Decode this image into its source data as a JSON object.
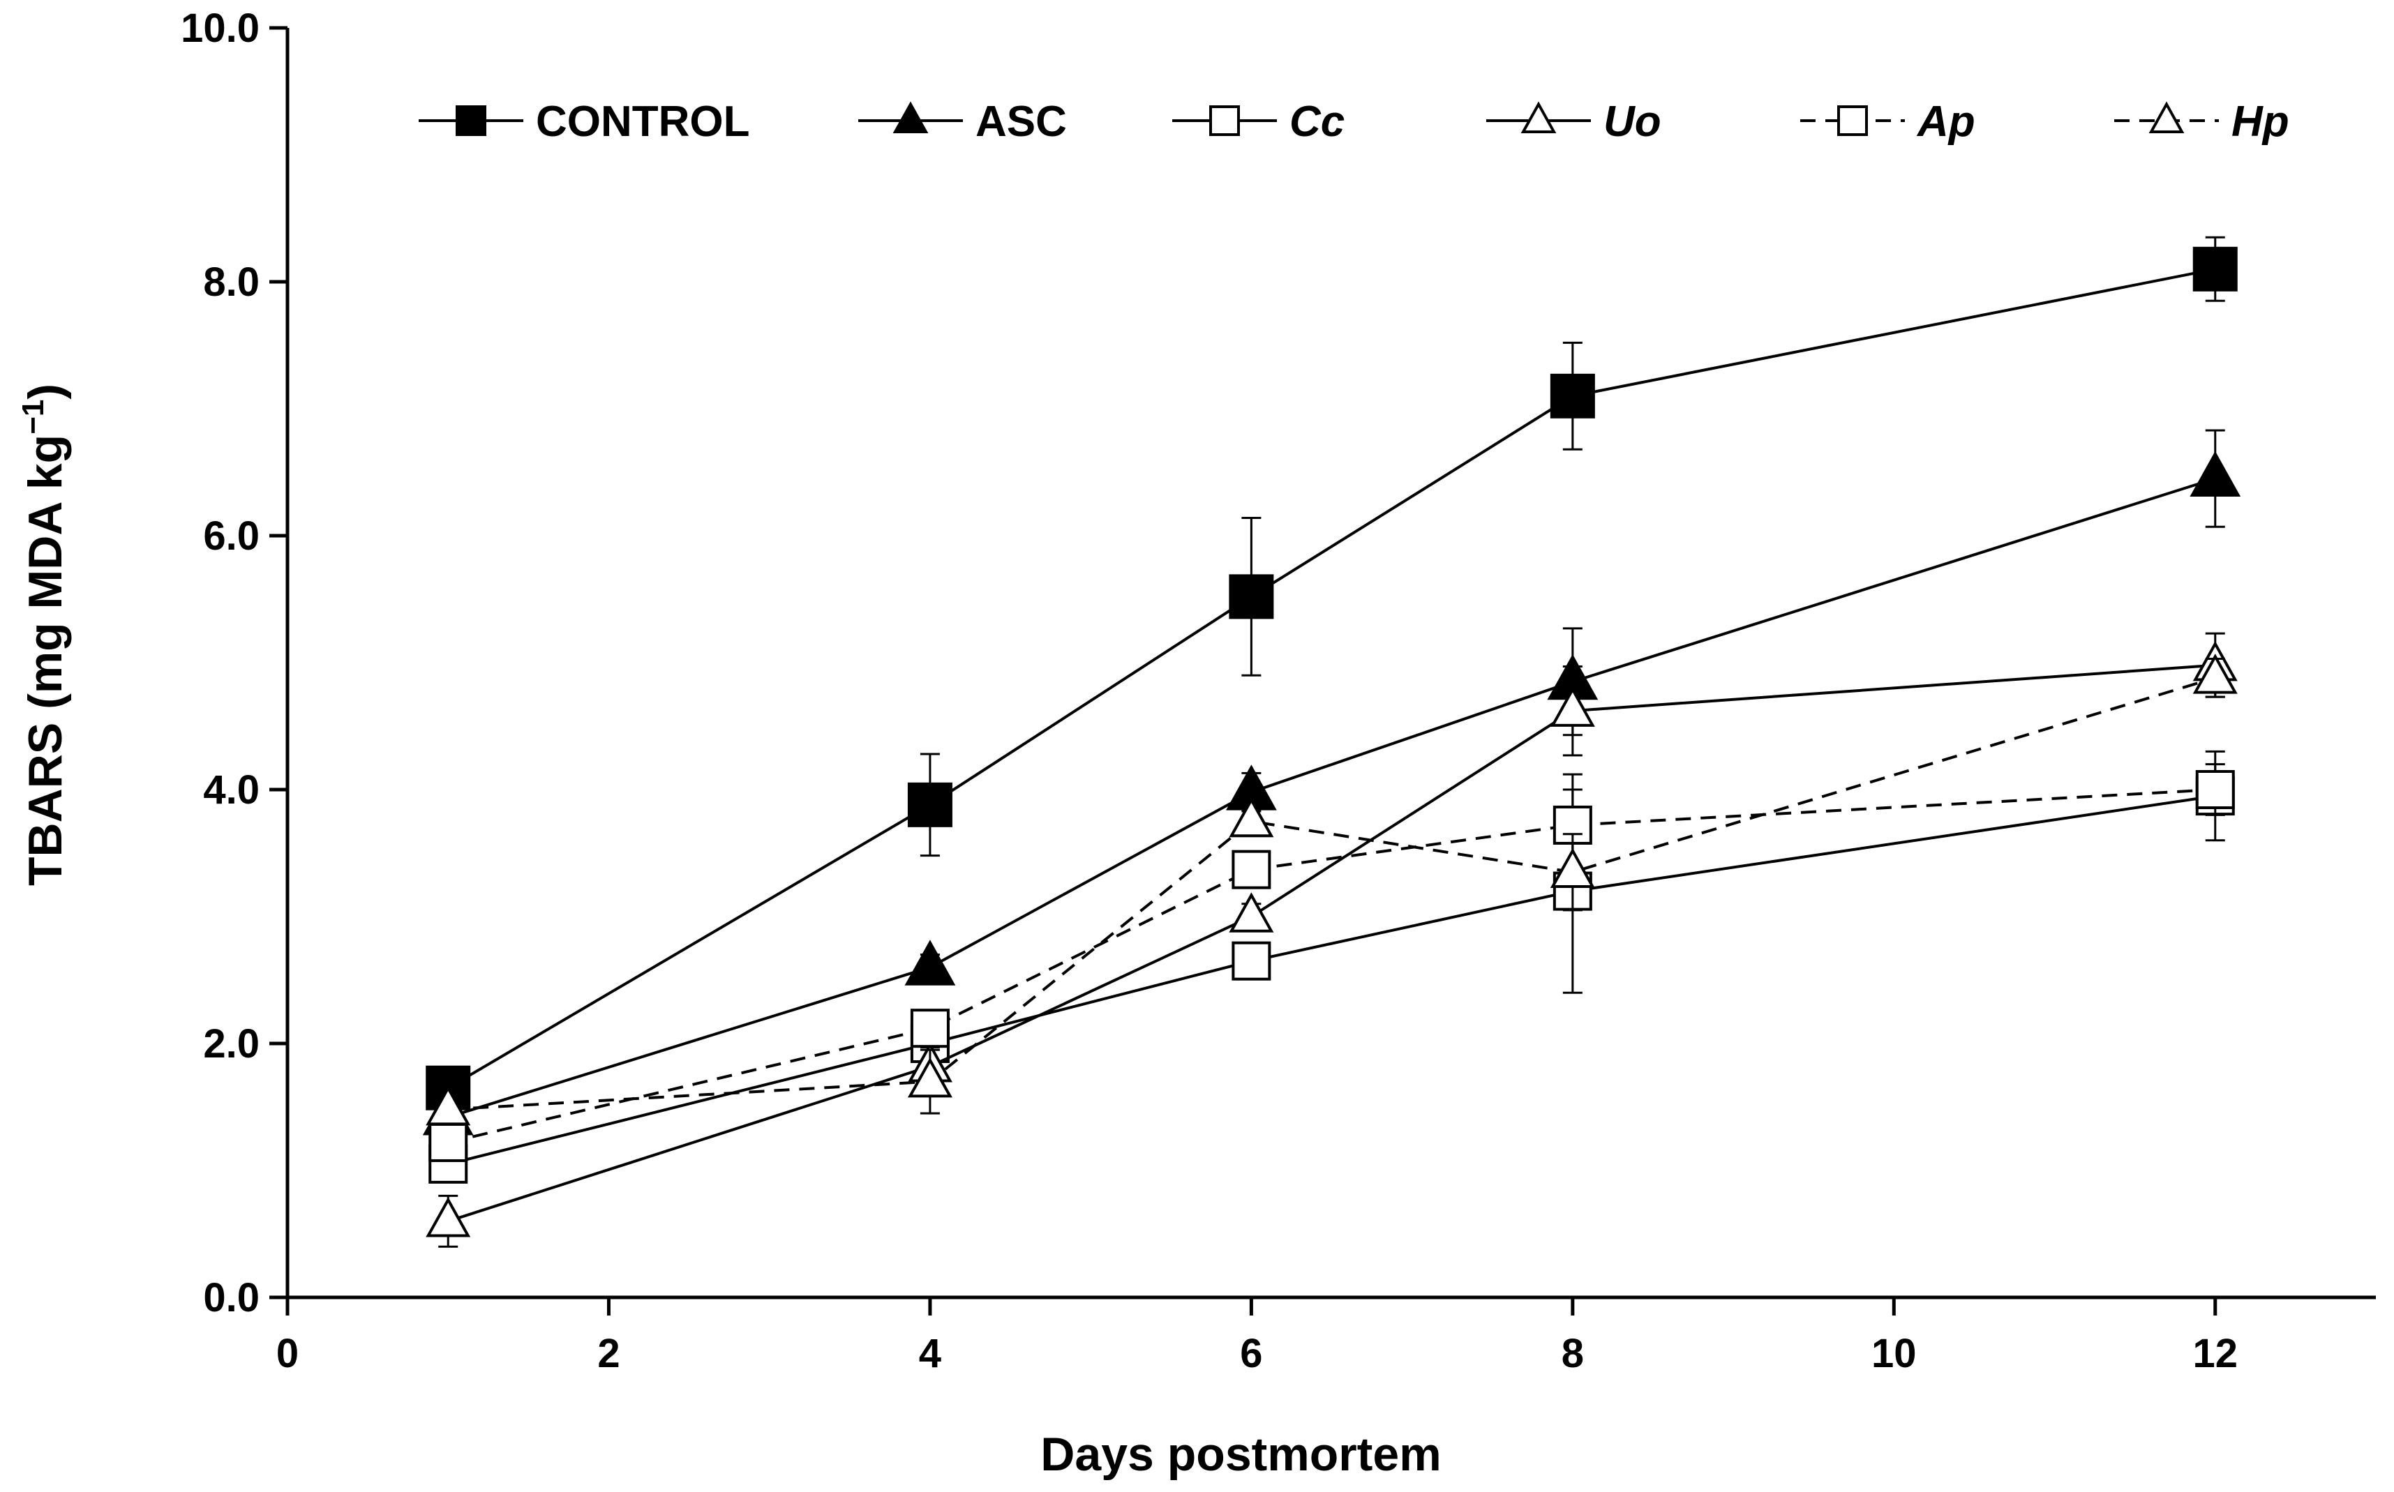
{
  "chart_data": {
    "type": "line",
    "xlabel": "Days postmortem",
    "ylabel_main": "TBARS (mg MDA kg",
    "ylabel_sup": "−1",
    "ylabel_close": ")",
    "xlim": [
      0,
      13
    ],
    "ylim": [
      0,
      10
    ],
    "x_ticks": [
      0,
      2,
      4,
      6,
      8,
      10,
      12
    ],
    "x_tick_labels": [
      "0",
      "2",
      "4",
      "6",
      "8",
      "10",
      "12"
    ],
    "y_ticks": [
      0,
      2,
      4,
      6,
      8,
      10
    ],
    "y_tick_labels": [
      "0.0",
      "2.0",
      "4.0",
      "6.0",
      "8.0",
      "10.0"
    ],
    "grid": false,
    "legend_position": "top",
    "x": [
      1,
      4,
      6,
      8,
      12
    ],
    "series": [
      {
        "name": "CONTROL",
        "italic": false,
        "marker": "square",
        "filled": true,
        "dashed": false,
        "values": [
          1.65,
          3.88,
          5.52,
          7.1,
          8.1
        ],
        "errors": [
          0.1,
          0.4,
          0.62,
          0.42,
          0.25
        ]
      },
      {
        "name": "ASC",
        "italic": false,
        "marker": "triangle",
        "filled": true,
        "dashed": false,
        "values": [
          1.42,
          2.6,
          3.98,
          4.85,
          6.45
        ],
        "errors": [
          0.08,
          0.1,
          0.15,
          0.42,
          0.38
        ]
      },
      {
        "name": "Cc",
        "italic": true,
        "marker": "square",
        "filled": false,
        "dashed": false,
        "values": [
          1.05,
          2.0,
          2.65,
          3.2,
          3.95
        ],
        "errors": [
          0.1,
          0.1,
          0.1,
          0.8,
          0.35
        ]
      },
      {
        "name": "Uo",
        "italic": true,
        "marker": "triangle",
        "filled": false,
        "dashed": false,
        "values": [
          0.6,
          1.82,
          3.0,
          4.62,
          4.98
        ],
        "errors": [
          0.2,
          0.15,
          0.1,
          0.35,
          0.25
        ]
      },
      {
        "name": "Ap",
        "italic": true,
        "marker": "square",
        "filled": false,
        "dashed": true,
        "values": [
          1.22,
          2.12,
          3.37,
          3.72,
          4.0
        ],
        "errors": [
          0.1,
          0.1,
          0.12,
          0.4,
          0.2
        ]
      },
      {
        "name": "Hp",
        "italic": true,
        "marker": "triangle",
        "filled": false,
        "dashed": true,
        "values": [
          1.48,
          1.7,
          3.75,
          3.35,
          4.88
        ],
        "errors": [
          0.1,
          0.25,
          0.1,
          0.3,
          0.15
        ]
      }
    ]
  }
}
